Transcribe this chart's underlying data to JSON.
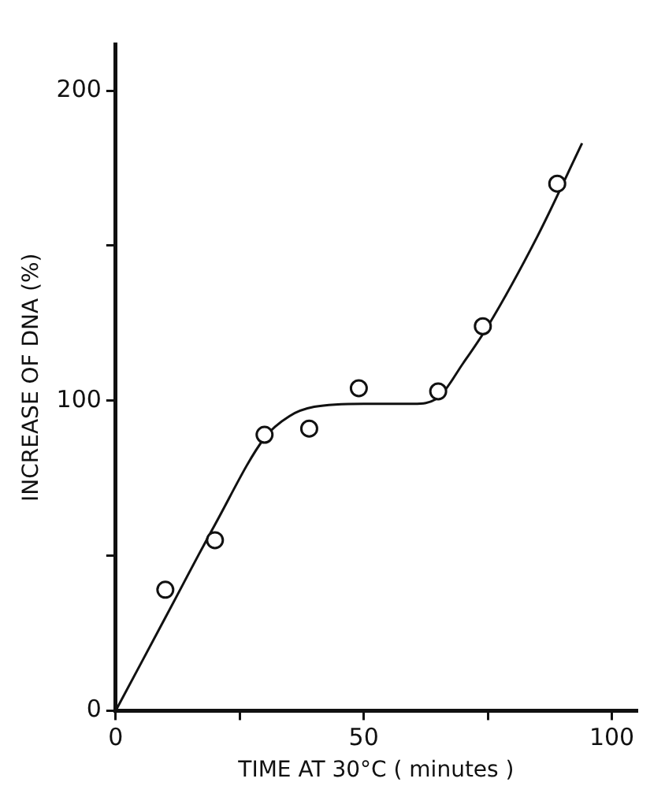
{
  "chart_data": {
    "type": "scatter",
    "xlabel": "TIME AT 30°C ( minutes )",
    "ylabel": "INCREASE OF DNA (%)",
    "xlim": [
      0,
      105
    ],
    "xticks": [
      0,
      {
        "value": 25,
        "label": null
      },
      50,
      {
        "value": 75,
        "label": null
      },
      100
    ],
    "ylim": [
      0,
      215
    ],
    "yticks": [
      0,
      {
        "value": 50,
        "label": null
      },
      100,
      {
        "value": 150,
        "label": null
      },
      200
    ],
    "grid": false,
    "legend": false,
    "marker": "circle",
    "series": [
      {
        "type": "scatter",
        "color": "#111111",
        "x": [
          10,
          20,
          30,
          39,
          49,
          65,
          74,
          89
        ],
        "values": [
          39,
          55,
          89,
          91,
          104,
          103,
          124,
          170
        ]
      },
      {
        "type": "line",
        "color": "#111111",
        "marker": "none",
        "line_style": "solid",
        "x": [
          0,
          10,
          20,
          30,
          35,
          40,
          50,
          60,
          65,
          70,
          75,
          85,
          94
        ],
        "values": [
          0,
          30,
          60,
          88,
          95,
          98,
          99,
          99,
          101,
          112,
          124,
          153,
          183
        ]
      }
    ]
  }
}
